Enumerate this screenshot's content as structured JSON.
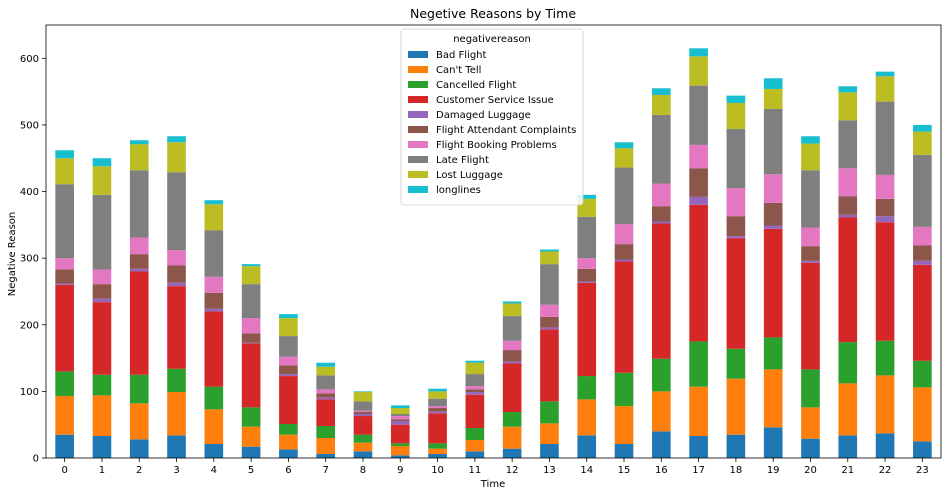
{
  "chart_data": {
    "type": "bar",
    "stacked": true,
    "title": "Negetive Reasons by Time",
    "xlabel": "Time",
    "ylabel": "Negative Reason",
    "ylim": [
      0,
      650
    ],
    "yticks": [
      0,
      100,
      200,
      300,
      400,
      500,
      600
    ],
    "grid": false,
    "legend_title": "negativereason",
    "legend_position": "top-center",
    "categories": [
      "0",
      "1",
      "2",
      "3",
      "4",
      "5",
      "6",
      "7",
      "8",
      "9",
      "10",
      "11",
      "12",
      "13",
      "14",
      "15",
      "16",
      "17",
      "18",
      "19",
      "20",
      "21",
      "22",
      "23"
    ],
    "series": [
      {
        "name": "Bad Flight",
        "color": "#1f77b4",
        "values": [
          35,
          33,
          28,
          34,
          21,
          17,
          13,
          6,
          10,
          4,
          6,
          10,
          14,
          21,
          34,
          21,
          40,
          33,
          35,
          46,
          29,
          34,
          37,
          25
        ]
      },
      {
        "name": "Can't Tell",
        "color": "#ff7f0e",
        "values": [
          58,
          61,
          54,
          65,
          52,
          30,
          22,
          24,
          13,
          14,
          8,
          17,
          33,
          31,
          54,
          57,
          60,
          74,
          84,
          87,
          47,
          78,
          87,
          81
        ]
      },
      {
        "name": "Cancelled Flight",
        "color": "#2ca02c",
        "values": [
          37,
          31,
          43,
          35,
          34,
          29,
          16,
          18,
          12,
          4,
          8,
          18,
          22,
          33,
          35,
          50,
          49,
          68,
          45,
          48,
          57,
          62,
          52,
          40
        ]
      },
      {
        "name": "Customer Service Issue",
        "color": "#d62728",
        "values": [
          130,
          109,
          155,
          124,
          113,
          96,
          72,
          40,
          28,
          28,
          45,
          50,
          73,
          108,
          140,
          167,
          203,
          205,
          166,
          163,
          160,
          187,
          178,
          144
        ]
      },
      {
        "name": "Damaged Luggage",
        "color": "#9467bd",
        "values": [
          2,
          5,
          4,
          5,
          4,
          1,
          3,
          3,
          3,
          5,
          3,
          4,
          3,
          3,
          2,
          3,
          3,
          12,
          3,
          5,
          3,
          4,
          9,
          6
        ]
      },
      {
        "name": "Flight Attendant Complaints",
        "color": "#8c564b",
        "values": [
          21,
          22,
          22,
          26,
          24,
          14,
          13,
          6,
          3,
          3,
          5,
          4,
          17,
          16,
          19,
          23,
          23,
          43,
          30,
          34,
          22,
          28,
          26,
          23
        ]
      },
      {
        "name": "Flight Booking Problems",
        "color": "#e377c2",
        "values": [
          17,
          22,
          25,
          23,
          24,
          23,
          13,
          6,
          2,
          5,
          3,
          5,
          14,
          18,
          16,
          30,
          34,
          35,
          42,
          43,
          28,
          42,
          36,
          28
        ]
      },
      {
        "name": "Late Flight",
        "color": "#7f7f7f",
        "values": [
          111,
          112,
          101,
          117,
          70,
          51,
          31,
          21,
          14,
          3,
          11,
          18,
          37,
          61,
          62,
          85,
          103,
          89,
          89,
          98,
          86,
          72,
          110,
          108
        ]
      },
      {
        "name": "Lost Luggage",
        "color": "#bcbd22",
        "values": [
          39,
          43,
          39,
          45,
          39,
          27,
          27,
          13,
          14,
          9,
          11,
          17,
          19,
          19,
          27,
          29,
          30,
          44,
          39,
          30,
          40,
          42,
          38,
          35
        ]
      },
      {
        "name": "longlines",
        "color": "#17becf",
        "values": [
          12,
          12,
          6,
          9,
          6,
          3,
          6,
          6,
          1,
          4,
          4,
          3,
          3,
          3,
          6,
          9,
          10,
          12,
          11,
          16,
          11,
          9,
          7,
          10
        ]
      }
    ]
  }
}
